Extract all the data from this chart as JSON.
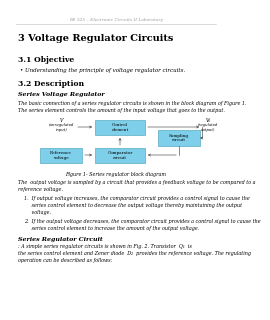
{
  "header_text": "EE 325 – Electronic Circuits II Laboratory",
  "title": "3 Voltage Regulator Circuits",
  "section_31": "3.1 Objective",
  "bullet_31": "• Understanding the principle of voltage regulator circuits.",
  "section_32": "3.2 Description",
  "subsection_series": "Series Voltage Regulator",
  "para1a": "The basic connection of a series regulator circuits is shown in the block diagram of Figure 1.",
  "para1b": "The series element controls the amount of the input voltage that goes to the output.",
  "fig_caption": "Figure 1- Series regulator block diagram",
  "para2a": "The  output voltage is sampled by a circuit that provides a feedback voltage to be compared to a",
  "para2b": "reference voltage.",
  "item1a": "1.  If output voltage increases, the comparator circuit provides a control signal to cause the",
  "item1b": "     series control element to decrease the output voltage thereby maintaining the output",
  "item1c": "     voltage.",
  "item2a": "2.  If the output voltage decreases, the comparator circuit provides a control signal to cause the",
  "item2b": "     series control element to increase the amount of the output voltage.",
  "subsection_src": "Series Regulator Circuit",
  "para3a": ": A simple series regulator circuits is shown in Fig. 2. Transistor  Q₁  is",
  "para3b": "the series control element and Zener diode  D₂  provides the reference voltage. The regulating",
  "para3c": "operation can be described as follows:",
  "bg_color": "#ffffff",
  "box_color": "#7ecfea",
  "header_color": "#999999",
  "line_color": "#bbbbbb",
  "ctrl_label": "Control\nelement",
  "samp_label": "Sampling\ncircuit",
  "comp_label": "Comparator\ncircuit",
  "ref_label": "Reference\nvoltage",
  "input_label1": "Vᴵ",
  "input_label2": "(unregulated",
  "input_label3": "input)",
  "output_label1": "V₀",
  "output_label2": "(regulated",
  "output_label3": "output)"
}
